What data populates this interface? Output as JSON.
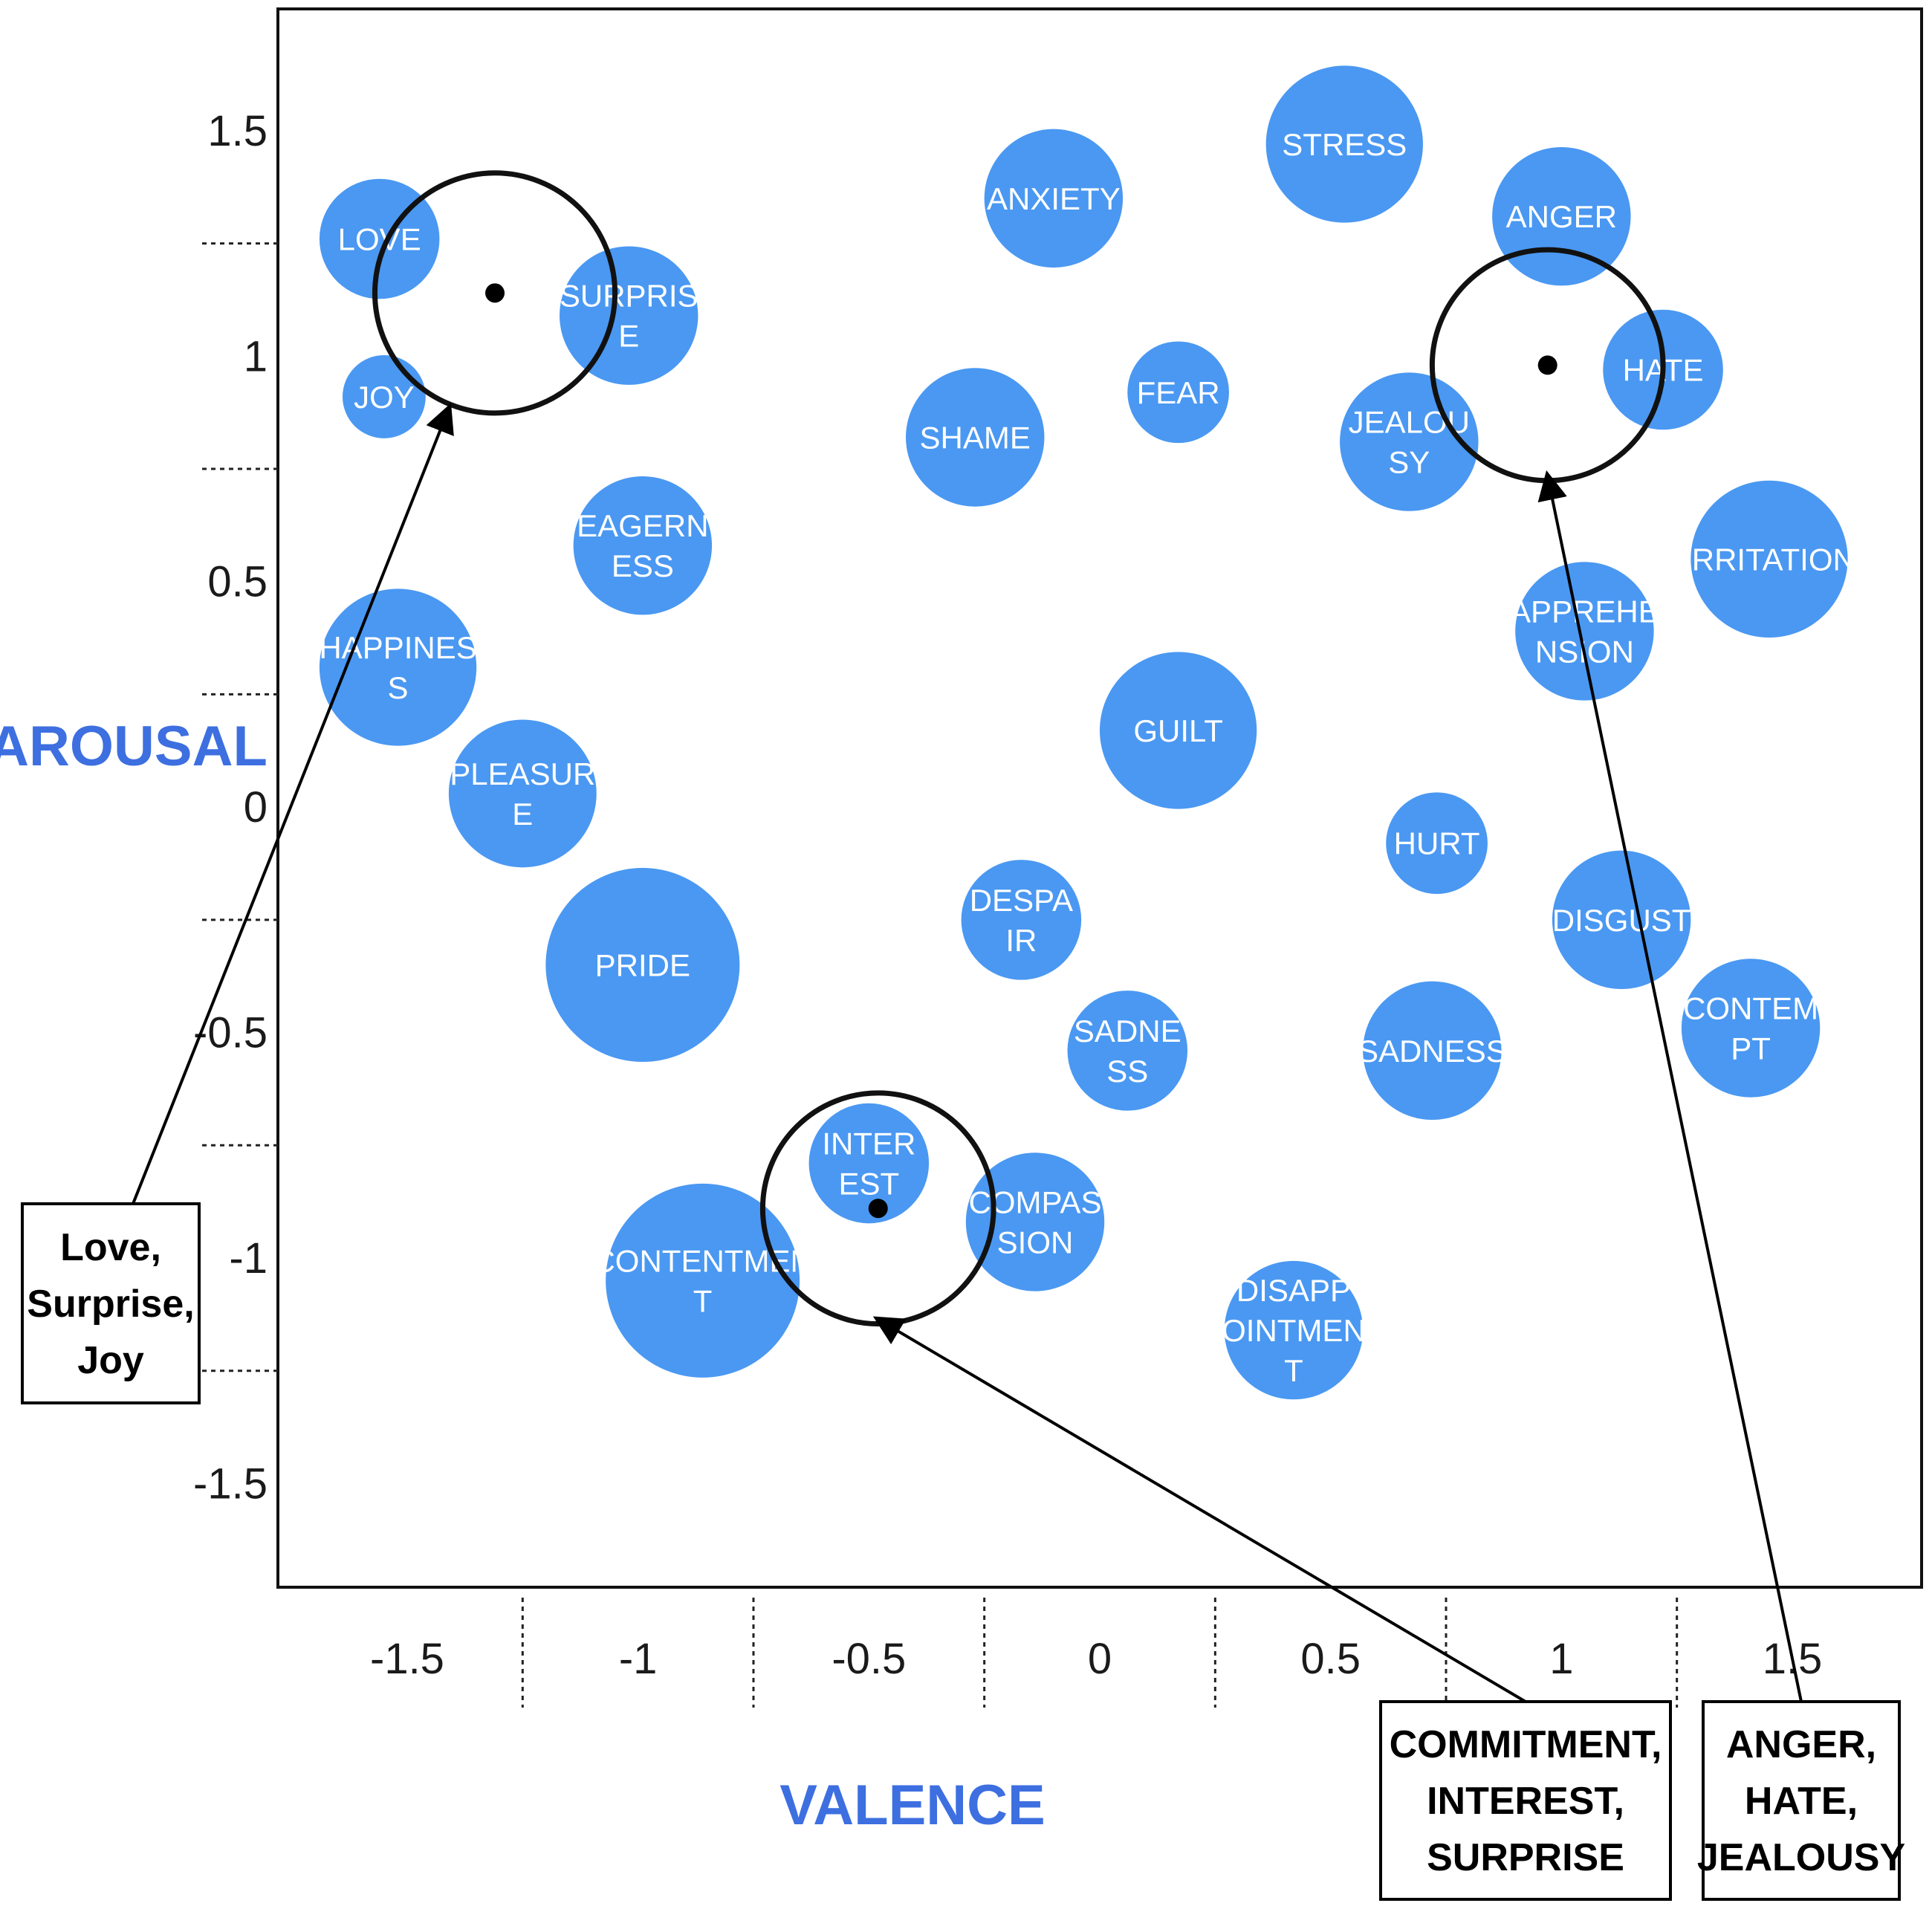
{
  "chart_data": {
    "type": "scatter",
    "xlabel": "VALENCE",
    "ylabel": "AROUSAL",
    "xlim": [
      -1.78,
      1.78
    ],
    "ylim": [
      -1.73,
      1.77
    ],
    "x_ticks": [
      -1.5,
      -1,
      -0.5,
      0,
      0.5,
      1,
      1.5
    ],
    "x_tick_labels": [
      "-1.5",
      "-1",
      "-0.5",
      "0",
      "0.5",
      "1",
      "1.5"
    ],
    "y_ticks": [
      1.5,
      1,
      0.5,
      0,
      -0.5,
      -1,
      -1.5
    ],
    "y_tick_labels": [
      "1.5",
      "1",
      "0.5",
      "0",
      "-0.5",
      "-1",
      "-1.5"
    ],
    "emotions": [
      {
        "name": "LOVE",
        "lines": [
          "LOVE"
        ],
        "x": -1.56,
        "y": 1.26,
        "r": 0.13
      },
      {
        "name": "JOY",
        "lines": [
          "JOY"
        ],
        "x": -1.55,
        "y": 0.91,
        "r": 0.09
      },
      {
        "name": "SURPRISE",
        "lines": [
          "SURPRIS",
          "E"
        ],
        "x": -1.02,
        "y": 1.09,
        "r": 0.15
      },
      {
        "name": "EAGERNESS",
        "lines": [
          "EAGERN",
          "ESS"
        ],
        "x": -0.99,
        "y": 0.58,
        "r": 0.15
      },
      {
        "name": "HAPPINESS",
        "lines": [
          "HAPPINES",
          "S"
        ],
        "x": -1.52,
        "y": 0.31,
        "r": 0.17
      },
      {
        "name": "PLEASURE",
        "lines": [
          "PLEASUR",
          "E"
        ],
        "x": -1.25,
        "y": 0.03,
        "r": 0.16
      },
      {
        "name": "PRIDE",
        "lines": [
          "PRIDE"
        ],
        "x": -0.99,
        "y": -0.35,
        "r": 0.21
      },
      {
        "name": "CONTENTMENT",
        "lines": [
          "CONTENTMEN",
          "T"
        ],
        "x": -0.86,
        "y": -1.05,
        "r": 0.21
      },
      {
        "name": "INTEREST",
        "lines": [
          "INTER",
          "EST"
        ],
        "x": -0.5,
        "y": -0.79,
        "r": 0.13
      },
      {
        "name": "COMPASSION",
        "lines": [
          "COMPAS",
          "SION"
        ],
        "x": -0.14,
        "y": -0.92,
        "r": 0.15
      },
      {
        "name": "ANXIETY",
        "lines": [
          "ANXIETY"
        ],
        "x": -0.1,
        "y": 1.35,
        "r": 0.15
      },
      {
        "name": "SHAME",
        "lines": [
          "SHAME"
        ],
        "x": -0.27,
        "y": 0.82,
        "r": 0.15
      },
      {
        "name": "FEAR",
        "lines": [
          "FEAR"
        ],
        "x": 0.17,
        "y": 0.92,
        "r": 0.11
      },
      {
        "name": "GUILT",
        "lines": [
          "GUILT"
        ],
        "x": 0.17,
        "y": 0.17,
        "r": 0.17
      },
      {
        "name": "DESPAIR",
        "lines": [
          "DESPA",
          "IR"
        ],
        "x": -0.17,
        "y": -0.25,
        "r": 0.13
      },
      {
        "name": "SADNESS_1",
        "lines": [
          "SADNE",
          "SS"
        ],
        "x": 0.06,
        "y": -0.54,
        "r": 0.13
      },
      {
        "name": "STRESS",
        "lines": [
          "STRESS"
        ],
        "x": 0.53,
        "y": 1.47,
        "r": 0.17
      },
      {
        "name": "JEALOUSY",
        "lines": [
          "JEALOU",
          "SY"
        ],
        "x": 0.67,
        "y": 0.81,
        "r": 0.15
      },
      {
        "name": "HURT",
        "lines": [
          "HURT"
        ],
        "x": 0.73,
        "y": -0.08,
        "r": 0.11
      },
      {
        "name": "SADNESS_2",
        "lines": [
          "SADNESS"
        ],
        "x": 0.72,
        "y": -0.54,
        "r": 0.15
      },
      {
        "name": "DISAPPOINTMENT",
        "lines": [
          "DISAPP",
          "OINTMEN",
          "T"
        ],
        "x": 0.42,
        "y": -1.16,
        "r": 0.15
      },
      {
        "name": "ANGER",
        "lines": [
          "ANGER"
        ],
        "x": 1.0,
        "y": 1.31,
        "r": 0.15
      },
      {
        "name": "HATE",
        "lines": [
          "HATE"
        ],
        "x": 1.22,
        "y": 0.97,
        "r": 0.13
      },
      {
        "name": "IRRITATION",
        "lines": [
          "IRRITATION"
        ],
        "x": 1.45,
        "y": 0.55,
        "r": 0.17
      },
      {
        "name": "APPREHENSION",
        "lines": [
          "APPREHE",
          "NSION"
        ],
        "x": 1.05,
        "y": 0.39,
        "r": 0.15
      },
      {
        "name": "DISGUST",
        "lines": [
          "DISGUST"
        ],
        "x": 1.13,
        "y": -0.25,
        "r": 0.15
      },
      {
        "name": "CONTEMPT",
        "lines": [
          "CONTEM",
          "PT"
        ],
        "x": 1.41,
        "y": -0.49,
        "r": 0.15
      }
    ],
    "clusters": [
      {
        "x": -1.31,
        "y": 1.14,
        "r": 0.26
      },
      {
        "x": -0.48,
        "y": -0.89,
        "r": 0.25
      },
      {
        "x": 0.97,
        "y": 0.98,
        "r": 0.25
      }
    ],
    "annotations": [
      {
        "lines": [
          "Love,",
          "Surprise,",
          "Joy"
        ],
        "cluster": 0
      },
      {
        "lines": [
          "COMMITMENT,",
          "INTEREST,",
          "SURPRISE"
        ],
        "cluster": 1
      },
      {
        "lines": [
          "ANGER,",
          "HATE,",
          "JEALOUSY"
        ],
        "cluster": 2
      }
    ]
  }
}
